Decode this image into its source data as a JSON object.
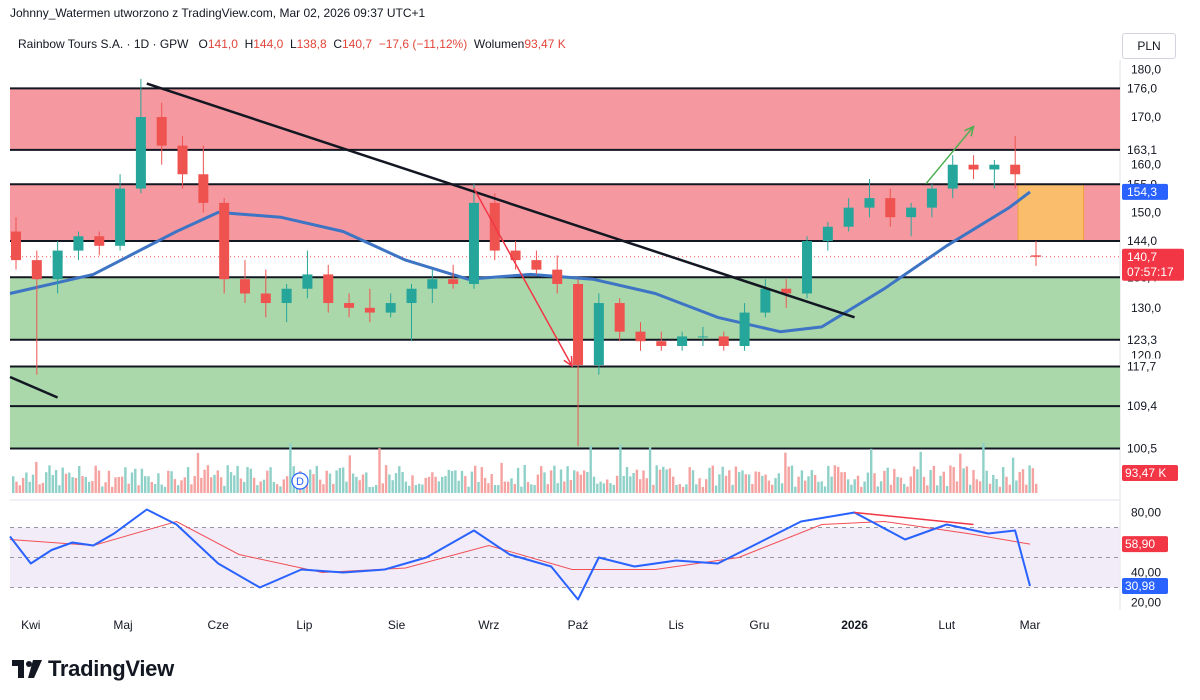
{
  "header": {
    "attribution": "Johnny_Watermen utworzono z TradingView.com, Mar 02, 2026 09:37 UTC+1",
    "symbol": "Rainbow Tours S.A. · 1D · GPW",
    "ohlc": {
      "open_label": "O",
      "open": "141,0",
      "high_label": "H",
      "high": "144,0",
      "low_label": "L",
      "low": "138,8",
      "close_label": "C",
      "close": "140,7",
      "change": "−17,6 (−11,12%)"
    },
    "volume_label": "Wolumen",
    "volume_value": "93,47 K"
  },
  "currency": "PLN",
  "brand": {
    "name": "TradingView",
    "logo_icon": "tradingview-logo-icon"
  },
  "colors": {
    "up": "#26a69a",
    "down": "#ef5350",
    "ma": "#5d53c7",
    "ma_long": "#3d74c4",
    "resistance_zone": "#f6929a",
    "support_zone": "#a5d6a7",
    "highlight_box": "#f9bd6c",
    "rsi": "#2962ff",
    "rsi_ma": "#f24f55"
  },
  "chart_data": [
    {
      "type": "candlestick",
      "title": "Rainbow Tours S.A. · 1D · GPW",
      "ylim": [
        96,
        183
      ],
      "y_ticks": [
        "180,0",
        "170,0",
        "160,0",
        "150,0",
        "140,0",
        "130,0",
        "120,0"
      ],
      "x_labels": [
        "Kwi",
        "Maj",
        "Cze",
        "Lip",
        "Sie",
        "Wrz",
        "Paź",
        "Lis",
        "Gru",
        "2026",
        "Lut",
        "Mar"
      ],
      "price_levels": [
        {
          "value": 176.0,
          "label": "176,0"
        },
        {
          "value": 163.1,
          "label": "163,1"
        },
        {
          "value": 155.9,
          "label": "155,9"
        },
        {
          "value": 144.0,
          "label": "144,0"
        },
        {
          "value": 136.4,
          "label": "136,4"
        },
        {
          "value": 123.3,
          "label": "123,3"
        },
        {
          "value": 117.7,
          "label": "117,7"
        },
        {
          "value": 109.4,
          "label": "109,4"
        },
        {
          "value": 100.5,
          "label": "100,5"
        }
      ],
      "zones": [
        {
          "kind": "resistance",
          "from": 163.1,
          "to": 176.0
        },
        {
          "kind": "resistance",
          "from": 144.0,
          "to": 155.9
        },
        {
          "kind": "support",
          "from": 123.3,
          "to": 136.4
        },
        {
          "kind": "support",
          "from": 100.5,
          "to": 117.7
        }
      ],
      "highlight_box": {
        "from": 144.0,
        "to": 155.9,
        "date_from": "2026-02-26",
        "date_to": "2026-03-20"
      },
      "last_price": {
        "value": 140.7,
        "label": "140,7",
        "countdown": "07:57:17"
      },
      "ma_value": {
        "value": 154.3,
        "label": "154,3"
      },
      "volume_badge": "93,47 K",
      "dividend_marker": "D",
      "trendline": [
        {
          "date": "2025-05-09",
          "price": 177
        },
        {
          "date": "2026-01-02",
          "price": 128
        }
      ],
      "trendline_early": [
        {
          "date": "2025-03-24",
          "price": 115.5
        },
        {
          "date": "2025-04-09",
          "price": 111.2
        }
      ],
      "arrows": [
        {
          "color": "down",
          "from": {
            "date": "2025-08-27",
            "price": 155
          },
          "to": {
            "date": "2025-09-29",
            "price": 117.8
          }
        },
        {
          "color": "up",
          "from": {
            "date": "2026-01-26",
            "price": 156
          },
          "to": {
            "date": "2026-02-11",
            "price": 168
          }
        }
      ],
      "ohlc_weekly": [
        {
          "date": "2025-03-24",
          "o": 146,
          "h": 149,
          "l": 138,
          "c": 140
        },
        {
          "date": "2025-03-31",
          "o": 140,
          "h": 142,
          "l": 116,
          "c": 136
        },
        {
          "date": "2025-04-07",
          "o": 136,
          "h": 144,
          "l": 133,
          "c": 142
        },
        {
          "date": "2025-04-14",
          "o": 142,
          "h": 146,
          "l": 140,
          "c": 145
        },
        {
          "date": "2025-04-21",
          "o": 145,
          "h": 146,
          "l": 141,
          "c": 143
        },
        {
          "date": "2025-04-28",
          "o": 143,
          "h": 158,
          "l": 142,
          "c": 155
        },
        {
          "date": "2025-05-05",
          "o": 155,
          "h": 178,
          "l": 154,
          "c": 170
        },
        {
          "date": "2025-05-12",
          "o": 170,
          "h": 173,
          "l": 160,
          "c": 164
        },
        {
          "date": "2025-05-19",
          "o": 164,
          "h": 166,
          "l": 155,
          "c": 158
        },
        {
          "date": "2025-05-26",
          "o": 158,
          "h": 164,
          "l": 150,
          "c": 152
        },
        {
          "date": "2025-06-02",
          "o": 152,
          "h": 153,
          "l": 133,
          "c": 136
        },
        {
          "date": "2025-06-09",
          "o": 136,
          "h": 140,
          "l": 131,
          "c": 133
        },
        {
          "date": "2025-06-16",
          "o": 133,
          "h": 138,
          "l": 128,
          "c": 131
        },
        {
          "date": "2025-06-23",
          "o": 131,
          "h": 135,
          "l": 127,
          "c": 134
        },
        {
          "date": "2025-06-30",
          "o": 134,
          "h": 142,
          "l": 132,
          "c": 137
        },
        {
          "date": "2025-07-07",
          "o": 137,
          "h": 139,
          "l": 129,
          "c": 131
        },
        {
          "date": "2025-07-14",
          "o": 131,
          "h": 133,
          "l": 128,
          "c": 130
        },
        {
          "date": "2025-07-21",
          "o": 130,
          "h": 134,
          "l": 127,
          "c": 129
        },
        {
          "date": "2025-07-28",
          "o": 129,
          "h": 133,
          "l": 128,
          "c": 131
        },
        {
          "date": "2025-08-04",
          "o": 131,
          "h": 135,
          "l": 123,
          "c": 134
        },
        {
          "date": "2025-08-11",
          "o": 134,
          "h": 138,
          "l": 131,
          "c": 136
        },
        {
          "date": "2025-08-18",
          "o": 136,
          "h": 139,
          "l": 134,
          "c": 135
        },
        {
          "date": "2025-08-25",
          "o": 135,
          "h": 156,
          "l": 134,
          "c": 152
        },
        {
          "date": "2025-09-01",
          "o": 152,
          "h": 154,
          "l": 140,
          "c": 142
        },
        {
          "date": "2025-09-08",
          "o": 142,
          "h": 144,
          "l": 138,
          "c": 140
        },
        {
          "date": "2025-09-15",
          "o": 140,
          "h": 142,
          "l": 137,
          "c": 138
        },
        {
          "date": "2025-09-22",
          "o": 138,
          "h": 141,
          "l": 133,
          "c": 135
        },
        {
          "date": "2025-09-29",
          "o": 135,
          "h": 136,
          "l": 101,
          "c": 118
        },
        {
          "date": "2025-10-06",
          "o": 118,
          "h": 133,
          "l": 116,
          "c": 131
        },
        {
          "date": "2025-10-13",
          "o": 131,
          "h": 132,
          "l": 123,
          "c": 125
        },
        {
          "date": "2025-10-20",
          "o": 125,
          "h": 127,
          "l": 121,
          "c": 123
        },
        {
          "date": "2025-10-27",
          "o": 123,
          "h": 125,
          "l": 121,
          "c": 122
        },
        {
          "date": "2025-11-03",
          "o": 122,
          "h": 125,
          "l": 121,
          "c": 124
        },
        {
          "date": "2025-11-10",
          "o": 124,
          "h": 126,
          "l": 122,
          "c": 124
        },
        {
          "date": "2025-11-17",
          "o": 124,
          "h": 125,
          "l": 121,
          "c": 122
        },
        {
          "date": "2025-11-24",
          "o": 122,
          "h": 131,
          "l": 121,
          "c": 129
        },
        {
          "date": "2025-12-01",
          "o": 129,
          "h": 136,
          "l": 128,
          "c": 134
        },
        {
          "date": "2025-12-08",
          "o": 134,
          "h": 136,
          "l": 130,
          "c": 133
        },
        {
          "date": "2025-12-15",
          "o": 133,
          "h": 145,
          "l": 132,
          "c": 144
        },
        {
          "date": "2025-12-22",
          "o": 144,
          "h": 148,
          "l": 142,
          "c": 147
        },
        {
          "date": "2025-12-29",
          "o": 147,
          "h": 153,
          "l": 146,
          "c": 151
        },
        {
          "date": "2026-01-05",
          "o": 151,
          "h": 157,
          "l": 149,
          "c": 153
        },
        {
          "date": "2026-01-12",
          "o": 153,
          "h": 155,
          "l": 147,
          "c": 149
        },
        {
          "date": "2026-01-19",
          "o": 149,
          "h": 152,
          "l": 145,
          "c": 151
        },
        {
          "date": "2026-01-26",
          "o": 151,
          "h": 156,
          "l": 149,
          "c": 155
        },
        {
          "date": "2026-02-02",
          "o": 155,
          "h": 162,
          "l": 153,
          "c": 160
        },
        {
          "date": "2026-02-09",
          "o": 160,
          "h": 162,
          "l": 157,
          "c": 159
        },
        {
          "date": "2026-02-16",
          "o": 159,
          "h": 161,
          "l": 155,
          "c": 160
        },
        {
          "date": "2026-02-23",
          "o": 160,
          "h": 166,
          "l": 155,
          "c": 158
        },
        {
          "date": "2026-03-02",
          "o": 141,
          "h": 144,
          "l": 138.8,
          "c": 140.7
        }
      ],
      "ma_series": [
        {
          "date": "2025-03-24",
          "value": 133
        },
        {
          "date": "2025-04-21",
          "value": 137
        },
        {
          "date": "2025-05-19",
          "value": 146
        },
        {
          "date": "2025-06-02",
          "value": 150
        },
        {
          "date": "2025-06-23",
          "value": 149
        },
        {
          "date": "2025-07-14",
          "value": 146
        },
        {
          "date": "2025-08-04",
          "value": 140
        },
        {
          "date": "2025-08-25",
          "value": 136
        },
        {
          "date": "2025-09-15",
          "value": 137
        },
        {
          "date": "2025-10-06",
          "value": 136
        },
        {
          "date": "2025-10-27",
          "value": 133
        },
        {
          "date": "2025-11-17",
          "value": 128
        },
        {
          "date": "2025-12-08",
          "value": 125
        },
        {
          "date": "2025-12-22",
          "value": 126
        },
        {
          "date": "2026-01-12",
          "value": 134
        },
        {
          "date": "2026-02-02",
          "value": 143
        },
        {
          "date": "2026-02-23",
          "value": 151
        },
        {
          "date": "2026-03-02",
          "value": 154.3
        }
      ]
    },
    {
      "type": "line",
      "title": "RSI",
      "ylim": [
        15,
        85
      ],
      "y_ticks": [
        "80,00",
        "40,00",
        "20,00"
      ],
      "reference_lines": [
        70,
        50,
        30
      ],
      "rsi_value": {
        "value": 30.98,
        "label": "30,98"
      },
      "rsi_ma_value": {
        "value": 58.9,
        "label": "58,90"
      },
      "divergence_line": [
        {
          "date": "2026-01-02",
          "value": 80
        },
        {
          "date": "2026-02-11",
          "value": 72
        }
      ],
      "rsi_series": [
        {
          "date": "2025-03-24",
          "value": 64
        },
        {
          "date": "2025-03-31",
          "value": 46
        },
        {
          "date": "2025-04-07",
          "value": 55
        },
        {
          "date": "2025-04-14",
          "value": 60
        },
        {
          "date": "2025-04-21",
          "value": 58
        },
        {
          "date": "2025-04-28",
          "value": 66
        },
        {
          "date": "2025-05-09",
          "value": 82
        },
        {
          "date": "2025-05-19",
          "value": 72
        },
        {
          "date": "2025-06-02",
          "value": 46
        },
        {
          "date": "2025-06-16",
          "value": 30
        },
        {
          "date": "2025-06-30",
          "value": 42
        },
        {
          "date": "2025-07-14",
          "value": 40
        },
        {
          "date": "2025-07-28",
          "value": 42
        },
        {
          "date": "2025-08-11",
          "value": 50
        },
        {
          "date": "2025-08-27",
          "value": 68
        },
        {
          "date": "2025-09-08",
          "value": 52
        },
        {
          "date": "2025-09-22",
          "value": 44
        },
        {
          "date": "2025-10-01",
          "value": 22
        },
        {
          "date": "2025-10-08",
          "value": 50
        },
        {
          "date": "2025-10-20",
          "value": 44
        },
        {
          "date": "2025-11-03",
          "value": 48
        },
        {
          "date": "2025-11-17",
          "value": 46
        },
        {
          "date": "2025-12-01",
          "value": 60
        },
        {
          "date": "2025-12-15",
          "value": 74
        },
        {
          "date": "2026-01-02",
          "value": 80
        },
        {
          "date": "2026-01-19",
          "value": 62
        },
        {
          "date": "2026-02-02",
          "value": 72
        },
        {
          "date": "2026-02-16",
          "value": 66
        },
        {
          "date": "2026-02-25",
          "value": 68
        },
        {
          "date": "2026-03-02",
          "value": 30.98
        }
      ],
      "rsi_ma_series": [
        {
          "date": "2025-03-24",
          "value": 62
        },
        {
          "date": "2025-04-21",
          "value": 58
        },
        {
          "date": "2025-05-19",
          "value": 74
        },
        {
          "date": "2025-06-09",
          "value": 52
        },
        {
          "date": "2025-07-07",
          "value": 40
        },
        {
          "date": "2025-08-04",
          "value": 43
        },
        {
          "date": "2025-09-01",
          "value": 58
        },
        {
          "date": "2025-09-29",
          "value": 42
        },
        {
          "date": "2025-10-27",
          "value": 42
        },
        {
          "date": "2025-11-24",
          "value": 50
        },
        {
          "date": "2025-12-22",
          "value": 72
        },
        {
          "date": "2026-01-12",
          "value": 74
        },
        {
          "date": "2026-02-09",
          "value": 66
        },
        {
          "date": "2026-03-02",
          "value": 58.9
        }
      ]
    }
  ]
}
